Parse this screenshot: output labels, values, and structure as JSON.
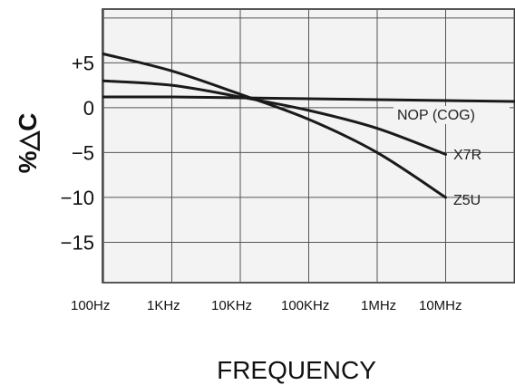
{
  "chart_data": {
    "type": "line",
    "title": "",
    "xlabel": "FREQUENCY",
    "ylabel": "%△C",
    "x_scale": "log",
    "x_ticks": [
      "100Hz",
      "1KHz",
      "10KHz",
      "100KHz",
      "1MHz",
      "10MHz"
    ],
    "y_ticks": [
      "+5",
      "0",
      "−5",
      "−10",
      "−15"
    ],
    "y_tick_values": [
      5,
      0,
      -5,
      -10,
      -15
    ],
    "ylim": [
      -19.5,
      11
    ],
    "grid": true,
    "series": [
      {
        "name": "NOP (COG)",
        "x": [
          "100Hz",
          "1KHz",
          "10KHz",
          "100KHz",
          "1MHz",
          "10MHz",
          "100MHz"
        ],
        "y": [
          1.2,
          1.2,
          1.1,
          1.0,
          0.9,
          0.8,
          0.7
        ]
      },
      {
        "name": "X7R",
        "x": [
          "100Hz",
          "1KHz",
          "10KHz",
          "100KHz",
          "1MHz",
          "10MHz"
        ],
        "y": [
          3.0,
          2.5,
          1.2,
          -0.3,
          -2.3,
          -5.2
        ]
      },
      {
        "name": "Z5U",
        "x": [
          "100Hz",
          "1KHz",
          "10KHz",
          "100KHz",
          "1MHz",
          "10MHz"
        ],
        "y": [
          6.0,
          4.1,
          1.5,
          -1.3,
          -5.0,
          -10.0
        ]
      }
    ]
  }
}
